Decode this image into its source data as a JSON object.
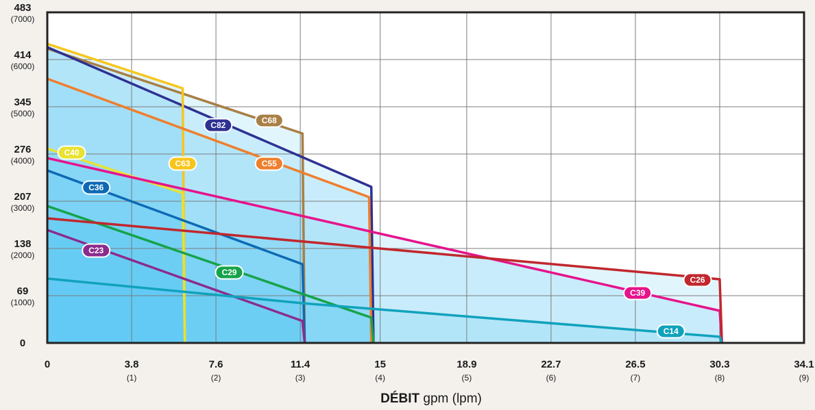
{
  "chart_data": {
    "type": "line",
    "grid": true,
    "xlim": [
      0,
      34.1
    ],
    "ylim": [
      0,
      483
    ],
    "x_ticks": [
      {
        "value": 0,
        "label": "0",
        "sub": ""
      },
      {
        "value": 3.8,
        "label": "3.8",
        "sub": "(1)"
      },
      {
        "value": 7.6,
        "label": "7.6",
        "sub": "(2)"
      },
      {
        "value": 11.4,
        "label": "11.4",
        "sub": "(3)"
      },
      {
        "value": 15,
        "label": "15",
        "sub": "(4)"
      },
      {
        "value": 18.9,
        "label": "18.9",
        "sub": "(5)"
      },
      {
        "value": 22.7,
        "label": "22.7",
        "sub": "(6)"
      },
      {
        "value": 26.5,
        "label": "26.5",
        "sub": "(7)"
      },
      {
        "value": 30.3,
        "label": "30.3",
        "sub": "(8)"
      },
      {
        "value": 34.1,
        "label": "34.1",
        "sub": "(9)"
      }
    ],
    "y_ticks": [
      {
        "value": 0,
        "label": "0",
        "sub": ""
      },
      {
        "value": 69,
        "label": "69",
        "sub": "(1000)"
      },
      {
        "value": 138,
        "label": "138",
        "sub": "(2000)"
      },
      {
        "value": 207,
        "label": "207",
        "sub": "(3000)"
      },
      {
        "value": 276,
        "label": "276",
        "sub": "(4000)"
      },
      {
        "value": 345,
        "label": "345",
        "sub": "(5000)"
      },
      {
        "value": 414,
        "label": "414",
        "sub": "(6000)"
      },
      {
        "value": 483,
        "label": "483",
        "sub": "(7000)"
      }
    ],
    "xlabel_bold": "DÉBIT",
    "xlabel_rest": " gpm (lpm)",
    "series": [
      {
        "name": "C68",
        "color": "#a87f45",
        "points": [
          [
            0,
            430
          ],
          [
            11.5,
            306
          ],
          [
            11.6,
            0
          ]
        ],
        "label_at": [
          10,
          325
        ]
      },
      {
        "name": "C82",
        "color": "#2e3192",
        "points": [
          [
            0,
            432
          ],
          [
            14.6,
            228
          ],
          [
            14.7,
            0
          ]
        ],
        "label_at": [
          7.7,
          318
        ]
      },
      {
        "name": "C63",
        "color": "#f7c61b",
        "points": [
          [
            0,
            437
          ],
          [
            6.1,
            372
          ],
          [
            6.2,
            0
          ]
        ],
        "label_at": [
          6.1,
          262
        ]
      },
      {
        "name": "C55",
        "color": "#ee7f2d",
        "points": [
          [
            0,
            386
          ],
          [
            14.5,
            213
          ],
          [
            14.6,
            0
          ]
        ],
        "label_at": [
          10,
          262
        ]
      },
      {
        "name": "C40",
        "color": "#e8e231",
        "points": [
          [
            0,
            284
          ],
          [
            6.1,
            219
          ],
          [
            6.2,
            0
          ]
        ],
        "label_at": [
          1.1,
          278
        ]
      },
      {
        "name": "C36",
        "color": "#0d6ab4",
        "points": [
          [
            0,
            252
          ],
          [
            11.5,
            115
          ],
          [
            11.6,
            0
          ]
        ],
        "label_at": [
          2.2,
          227
        ]
      },
      {
        "name": "C29",
        "color": "#16a34a",
        "points": [
          [
            0,
            200
          ],
          [
            14.6,
            37
          ],
          [
            14.7,
            0
          ]
        ],
        "label_at": [
          8.2,
          103
        ]
      },
      {
        "name": "C23",
        "color": "#8b2c8d",
        "points": [
          [
            0,
            165
          ],
          [
            11.5,
            32
          ],
          [
            11.6,
            0
          ]
        ],
        "label_at": [
          2.2,
          135
        ]
      },
      {
        "name": "C39",
        "color": "#e6138b",
        "points": [
          [
            0,
            270
          ],
          [
            30.3,
            47
          ],
          [
            30.4,
            0
          ]
        ],
        "label_at": [
          26.6,
          73
        ]
      },
      {
        "name": "C26",
        "color": "#c1272d",
        "points": [
          [
            0,
            182
          ],
          [
            30.3,
            93
          ],
          [
            30.4,
            0
          ]
        ],
        "label_at": [
          29.3,
          92
        ]
      },
      {
        "name": "C14",
        "color": "#10a2bc",
        "points": [
          [
            0,
            94
          ],
          [
            11.5,
            58
          ],
          [
            30.3,
            9
          ],
          [
            30.4,
            0
          ]
        ],
        "label_at": [
          28.1,
          17
        ]
      }
    ]
  }
}
